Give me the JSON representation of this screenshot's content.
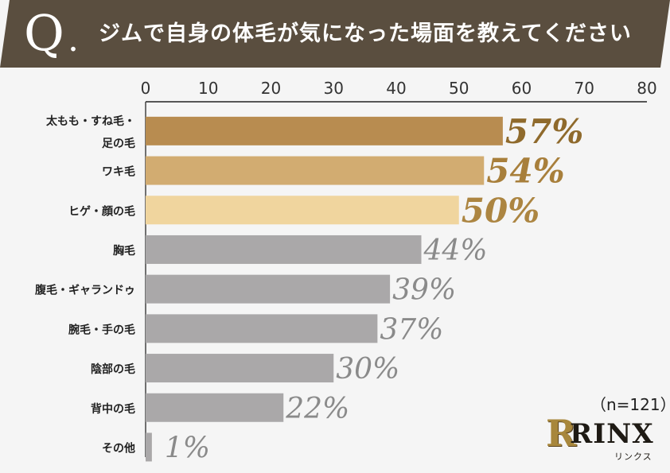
{
  "header": {
    "q_letter": "Q",
    "q_dot": ".",
    "title": "ジムで自身の体毛が気になった場面を教えてください"
  },
  "colors": {
    "banner": "#5a4e3f",
    "top_bar": "#b88c50",
    "second_bar": "#d2ac71",
    "third_bar": "#f0d59e",
    "other_bars": "#aaa8a9",
    "top_label": "#8f6a2c",
    "second_label": "#a87f3b",
    "third_label": "#ac8541",
    "other_label": "#8a8a8a"
  },
  "chart_data": {
    "type": "bar",
    "orientation": "horizontal",
    "xlim": [
      0,
      80
    ],
    "ticks": [
      "0",
      "10",
      "20",
      "30",
      "40",
      "50",
      "60",
      "70",
      "80"
    ],
    "categories": [
      [
        "太もも・すね毛・",
        "足の毛"
      ],
      [
        "ワキ毛"
      ],
      [
        "ヒゲ・顔の毛"
      ],
      [
        "胸毛"
      ],
      [
        "腹毛・ギャランドゥ"
      ],
      [
        "腕毛・手の毛"
      ],
      [
        "陰部の毛"
      ],
      [
        "背中の毛"
      ],
      [
        "その他"
      ]
    ],
    "values": [
      57,
      54,
      50,
      44,
      39,
      37,
      30,
      22,
      1
    ],
    "value_labels": [
      "57%",
      "54%",
      "50%",
      "44%",
      "39%",
      "37%",
      "30%",
      "22%",
      "1%"
    ],
    "grid": false
  },
  "footer": {
    "sample": "（n=121）",
    "logo_mark": "R",
    "logo_text": "RINX",
    "logo_sub": "リンクス"
  }
}
